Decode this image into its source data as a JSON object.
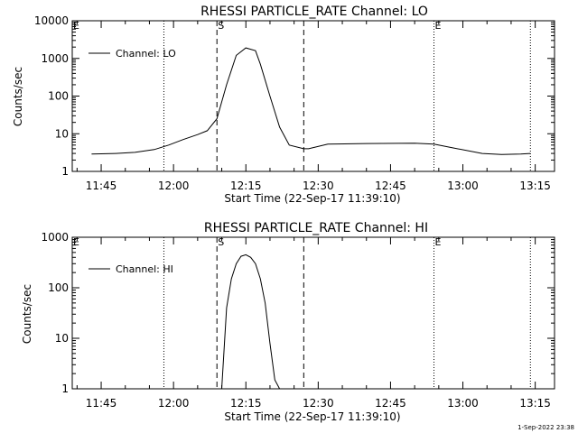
{
  "footer_timestamp": "1-Sep-2022 23:38",
  "chart_data": [
    {
      "type": "line",
      "title": "RHESSI PARTICLE_RATE Channel: LO",
      "xlabel": "Start Time (22-Sep-17 11:39:10)",
      "ylabel": "Counts/sec",
      "yscale": "log",
      "ylim": [
        1,
        10000
      ],
      "xlim": [
        "11:39",
        "13:19"
      ],
      "x_ticks": [
        "11:45",
        "12:00",
        "12:15",
        "12:30",
        "12:45",
        "13:00",
        "13:15"
      ],
      "y_ticks": [
        "1",
        "10",
        "100",
        "1000",
        "10000"
      ],
      "legend": {
        "position": "top-left",
        "entries": [
          "Channel: LO"
        ]
      },
      "markers": {
        "E": [
          "11:39",
          "12:54"
        ],
        "S": [
          "12:09"
        ],
        "dotted_lines": [
          "11:58",
          "12:54",
          "13:14"
        ],
        "dashed_lines": [
          "12:09",
          "12:27"
        ]
      },
      "series": [
        {
          "name": "Channel: LO",
          "x": [
            "11:43",
            "11:48",
            "11:52",
            "11:56",
            "11:59",
            "12:02",
            "12:05",
            "12:07",
            "12:09",
            "12:11",
            "12:13",
            "12:15",
            "12:17",
            "12:18",
            "12:20",
            "12:22",
            "12:24",
            "12:27",
            "12:28",
            "12:32",
            "12:40",
            "12:50",
            "12:54",
            "12:58",
            "13:04",
            "13:08",
            "13:12",
            "13:14"
          ],
          "y": [
            2.9,
            3.0,
            3.2,
            3.8,
            5.0,
            7.0,
            9.5,
            12,
            25,
            200,
            1200,
            1900,
            1600,
            700,
            100,
            15,
            5,
            4,
            4,
            5.3,
            5.5,
            5.6,
            5.3,
            4.2,
            3.0,
            2.8,
            2.9,
            3.0
          ]
        }
      ]
    },
    {
      "type": "line",
      "title": "RHESSI PARTICLE_RATE Channel: HI",
      "xlabel": "Start Time (22-Sep-17 11:39:10)",
      "ylabel": "Counts/sec",
      "yscale": "log",
      "ylim": [
        1,
        1000
      ],
      "xlim": [
        "11:39",
        "13:19"
      ],
      "x_ticks": [
        "11:45",
        "12:00",
        "12:15",
        "12:30",
        "12:45",
        "13:00",
        "13:15"
      ],
      "y_ticks": [
        "1",
        "10",
        "100",
        "1000"
      ],
      "legend": {
        "position": "top-left",
        "entries": [
          "Channel: HI"
        ]
      },
      "markers": {
        "E": [
          "11:39",
          "12:54"
        ],
        "S": [
          "12:09"
        ],
        "dotted_lines": [
          "11:58",
          "12:54",
          "13:14"
        ],
        "dashed_lines": [
          "12:09",
          "12:27"
        ]
      },
      "series": [
        {
          "name": "Channel: HI",
          "x": [
            "12:10",
            "12:11",
            "12:12",
            "12:13",
            "12:14",
            "12:15",
            "12:16",
            "12:17",
            "12:18",
            "12:19",
            "12:20",
            "12:21",
            "12:22"
          ],
          "y": [
            1,
            40,
            150,
            300,
            420,
            450,
            400,
            300,
            150,
            50,
            8,
            1.5,
            1
          ]
        }
      ]
    }
  ]
}
